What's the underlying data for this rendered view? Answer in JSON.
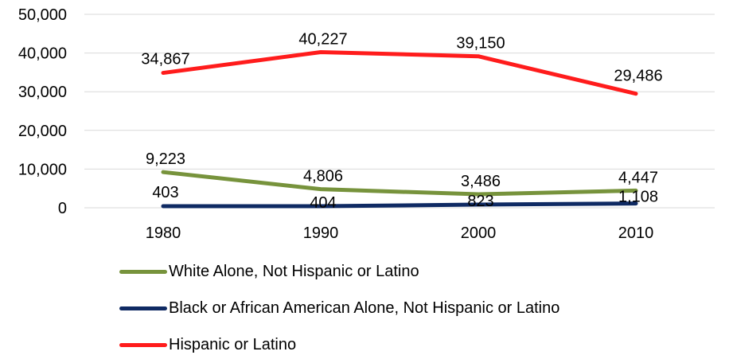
{
  "chart_data": {
    "type": "line",
    "title": "",
    "xlabel": "",
    "ylabel": "",
    "categories": [
      "1980",
      "1990",
      "2000",
      "2010"
    ],
    "ylim": [
      0,
      50000
    ],
    "yticks": [
      "0",
      "10,000",
      "20,000",
      "30,000",
      "40,000",
      "50,000"
    ],
    "grid": true,
    "legend_position": "bottom",
    "series": [
      {
        "name": "White Alone, Not Hispanic or Latino",
        "color": "#77933C",
        "values": [
          9223,
          4806,
          3486,
          4447
        ],
        "labels": [
          "9,223",
          "4,806",
          "3,486",
          "4,447"
        ]
      },
      {
        "name": "Black or African American Alone, Not Hispanic or Latino",
        "color": "#0F2A63",
        "values": [
          403,
          404,
          823,
          1108
        ],
        "labels": [
          "403",
          "404",
          "823",
          "1,108"
        ]
      },
      {
        "name": "Hispanic or Latino",
        "color": "#FF1C1C",
        "values": [
          34867,
          40227,
          39150,
          29486
        ],
        "labels": [
          "34,867",
          "40,227",
          "39,150",
          "29,486"
        ]
      }
    ]
  }
}
